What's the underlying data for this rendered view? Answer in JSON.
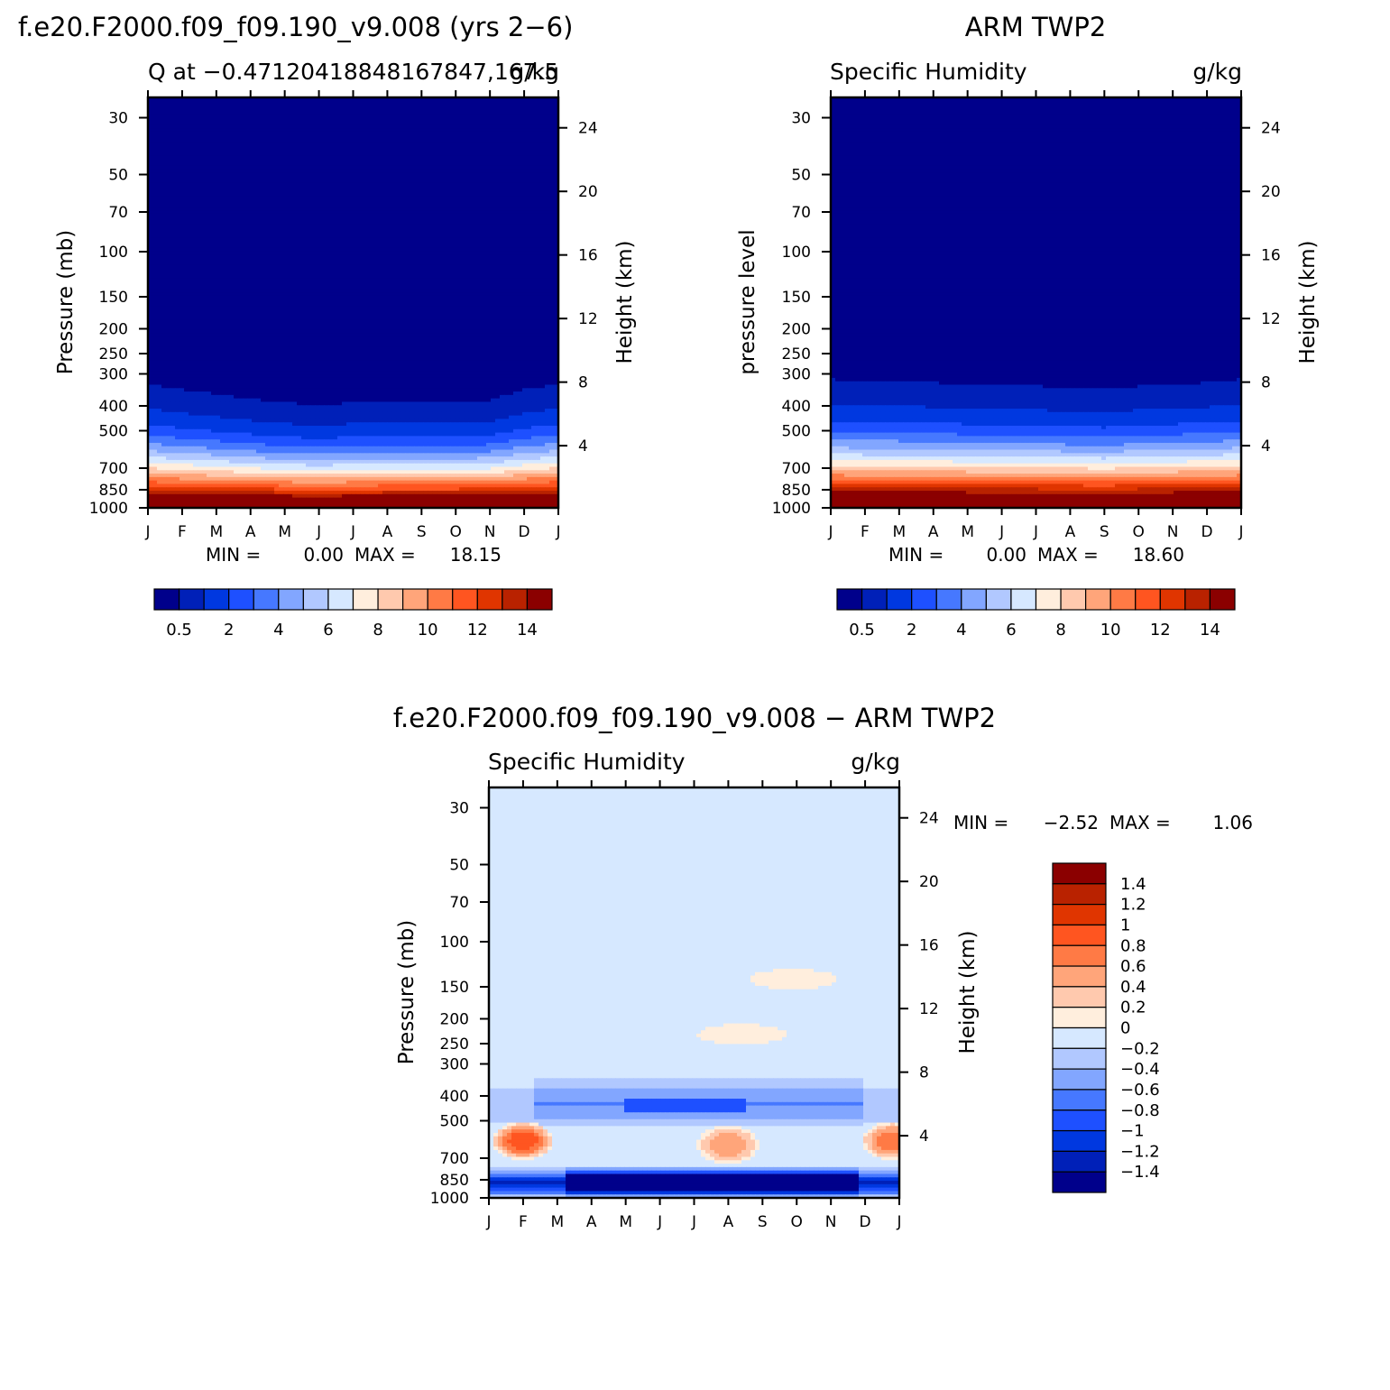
{
  "panels": {
    "model": {
      "main_title": "f.e20.F2000.f09_f09.190_v9.008 (yrs 2−6)",
      "var_title": "Q at −0.47120418848167847,167.5",
      "units": "g/kg",
      "left_axis_title": "Pressure (mb)",
      "right_axis_title": "Height (km)",
      "stats": {
        "min_label": "MIN =",
        "min": "0.00",
        "max_label": "MAX =",
        "max": "18.15"
      }
    },
    "obs": {
      "main_title": "ARM TWP2",
      "var_title": "Specific Humidity",
      "units": "g/kg",
      "left_axis_title": "pressure level",
      "right_axis_title": "Height (km)",
      "stats": {
        "min_label": "MIN =",
        "min": "0.00",
        "max_label": "MAX =",
        "max": "18.60"
      }
    },
    "diff": {
      "main_title": "f.e20.F2000.f09_f09.190_v9.008 − ARM TWP2",
      "var_title": "Specific Humidity",
      "units": "g/kg",
      "left_axis_title": "Pressure (mb)",
      "right_axis_title": "Height (km)",
      "stats": {
        "min_label": "MIN =",
        "min": "−2.52",
        "max_label": "MAX =",
        "max": "1.06"
      }
    }
  },
  "colorbars": {
    "abs": {
      "colors": [
        "#00008b",
        "#0020b8",
        "#0038e0",
        "#1e50ff",
        "#4678ff",
        "#82a6ff",
        "#b1c8ff",
        "#d6e8ff",
        "#ffeedd",
        "#ffc9ae",
        "#ffa57a",
        "#ff7a45",
        "#ff5520",
        "#e03500",
        "#b92200",
        "#8b0000"
      ],
      "labels": [
        "0.5",
        "2",
        "4",
        "6",
        "8",
        "10",
        "12",
        "14"
      ]
    },
    "diff": {
      "colors": [
        "#8b0000",
        "#b92200",
        "#e03500",
        "#ff5520",
        "#ff7a45",
        "#ffa57a",
        "#ffc9ae",
        "#ffeedd",
        "#d6e8ff",
        "#b1c8ff",
        "#82a6ff",
        "#4678ff",
        "#1e50ff",
        "#0038e0",
        "#0020b8",
        "#00008b"
      ],
      "labels": [
        "1.4",
        "1.2",
        "1",
        "0.8",
        "0.6",
        "0.4",
        "0.2",
        "0",
        "−0.2",
        "−0.4",
        "−0.6",
        "−0.8",
        "−1",
        "−1.2",
        "−1.4"
      ]
    }
  },
  "chart_data": [
    {
      "type": "heatmap",
      "title": "Q at −0.47120418848167847,167.5",
      "units": "g/kg",
      "x": [
        "J",
        "F",
        "M",
        "A",
        "M",
        "J",
        "J",
        "A",
        "S",
        "O",
        "N",
        "D",
        "J"
      ],
      "pressure_levels": [
        30,
        50,
        70,
        100,
        150,
        200,
        250,
        300,
        400,
        500,
        700,
        850,
        1000
      ],
      "height_km": [
        4,
        8,
        12,
        16,
        20,
        24
      ],
      "ylabel": "Pressure (mb)",
      "y2label": "Height (km)",
      "ylim": [
        1000,
        25
      ],
      "contour_levels": [
        0.5,
        1,
        2,
        3,
        4,
        5,
        6,
        7,
        8,
        9,
        10,
        11,
        12,
        13,
        14
      ],
      "min": 0.0,
      "max": 18.15,
      "moist_top_pressure": [
        330,
        345,
        360,
        375,
        390,
        395,
        390,
        385,
        385,
        385,
        380,
        345,
        330
      ]
    },
    {
      "type": "heatmap",
      "title": "Specific Humidity",
      "units": "g/kg",
      "x": [
        "J",
        "F",
        "M",
        "A",
        "M",
        "J",
        "J",
        "A",
        "S",
        "O",
        "N",
        "D",
        "J"
      ],
      "pressure_levels": [
        30,
        50,
        70,
        100,
        150,
        200,
        250,
        300,
        400,
        500,
        700,
        850,
        1000
      ],
      "height_km": [
        4,
        8,
        12,
        16,
        20,
        24
      ],
      "ylabel": "pressure level",
      "y2label": "Height (km)",
      "ylim": [
        1000,
        25
      ],
      "contour_levels": [
        0.5,
        1,
        2,
        3,
        4,
        5,
        6,
        7,
        8,
        9,
        10,
        11,
        12,
        13,
        14
      ],
      "min": 0.0,
      "max": 18.6,
      "moist_top_pressure": [
        315,
        320,
        320,
        325,
        330,
        335,
        335,
        340,
        345,
        335,
        330,
        325,
        315
      ]
    },
    {
      "type": "heatmap",
      "title": "Specific Humidity",
      "units": "g/kg",
      "x": [
        "J",
        "F",
        "M",
        "A",
        "M",
        "J",
        "J",
        "A",
        "S",
        "O",
        "N",
        "D",
        "J"
      ],
      "pressure_levels": [
        30,
        50,
        70,
        100,
        150,
        200,
        250,
        300,
        400,
        500,
        700,
        850,
        1000
      ],
      "height_km": [
        4,
        8,
        12,
        16,
        20,
        24
      ],
      "ylabel": "Pressure (mb)",
      "y2label": "Height (km)",
      "ylim": [
        1000,
        25
      ],
      "contour_levels": [
        -1.4,
        -1.2,
        -1,
        -0.8,
        -0.6,
        -0.4,
        -0.2,
        0,
        0.2,
        0.4,
        0.6,
        0.8,
        1,
        1.2,
        1.4
      ],
      "min": -2.52,
      "max": 1.06,
      "features": [
        {
          "kind": "moist",
          "month_pos": 1.0,
          "pressure": 600,
          "peak": 1.0
        },
        {
          "kind": "moist",
          "month_pos": 11.8,
          "pressure": 600,
          "peak": 0.8
        },
        {
          "kind": "moist",
          "month_pos": 7.0,
          "pressure": 620,
          "peak": 0.6
        },
        {
          "kind": "moist",
          "month_pos": 7.4,
          "pressure": 230,
          "peak": 0.1
        },
        {
          "kind": "moist",
          "month_pos": 8.9,
          "pressure": 140,
          "peak": 0.1
        },
        {
          "kind": "dry",
          "month_pos": 5.0,
          "pressure": 880,
          "peak": -2.5
        },
        {
          "kind": "dry",
          "month_pos": 5.5,
          "pressure": 440,
          "peak": -0.9
        }
      ]
    }
  ]
}
